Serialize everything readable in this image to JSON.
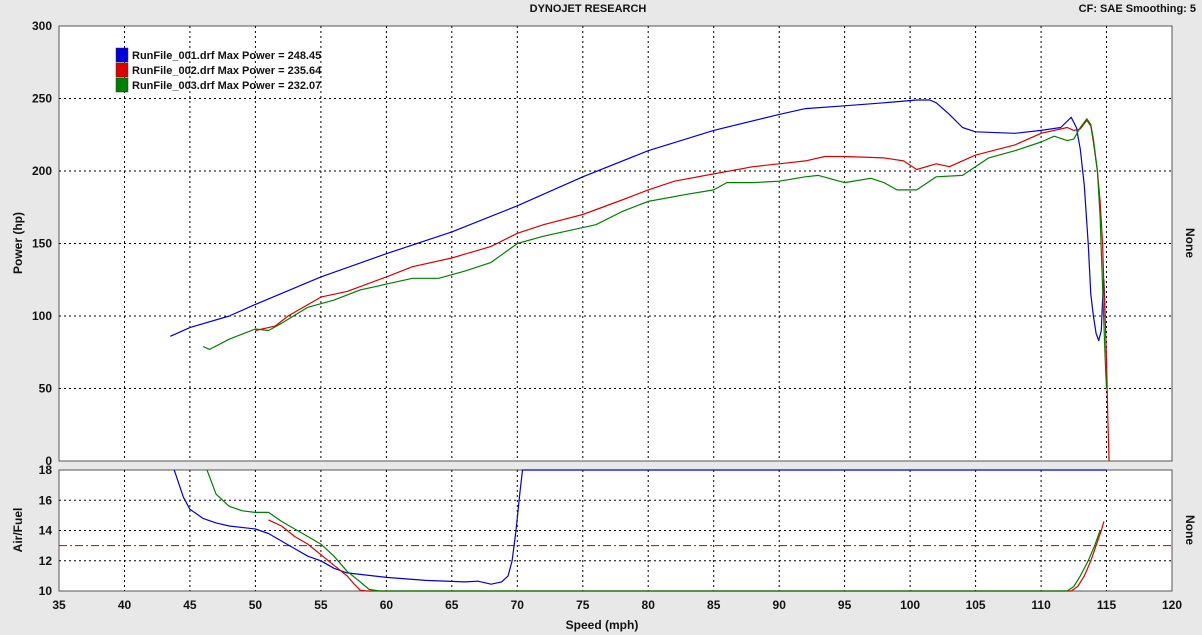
{
  "header": {
    "title": "DYNOJET RESEARCH",
    "settings": "CF: SAE  Smoothing: 5"
  },
  "chart_data": [
    {
      "type": "line",
      "ylabel": "Power (hp)",
      "right_label": "None",
      "xlim": [
        35,
        120
      ],
      "ylim": [
        0,
        300
      ],
      "yticks": [
        0,
        50,
        100,
        150,
        200,
        250,
        300
      ],
      "grid": true,
      "legend_position": "top-left",
      "series": [
        {
          "name": "RunFile_001.drf Max Power = 248.45",
          "color": "#0000dd",
          "points": [
            [
              43.5,
              86
            ],
            [
              45,
              92
            ],
            [
              48,
              100
            ],
            [
              50,
              108
            ],
            [
              55,
              127
            ],
            [
              60,
              143
            ],
            [
              65,
              158
            ],
            [
              70,
              176
            ],
            [
              75,
              196
            ],
            [
              80,
              214
            ],
            [
              85,
              228
            ],
            [
              90,
              239
            ],
            [
              92,
              243
            ],
            [
              95,
              245
            ],
            [
              98,
              247
            ],
            [
              100.5,
              249
            ],
            [
              101.5,
              249
            ],
            [
              102,
              247
            ],
            [
              103,
              239
            ],
            [
              104,
              230
            ],
            [
              105,
              227
            ],
            [
              108,
              226
            ],
            [
              110,
              228
            ],
            [
              111.5,
              230
            ],
            [
              112.3,
              237
            ],
            [
              112.7,
              230
            ],
            [
              113,
              215
            ],
            [
              113.3,
              190
            ],
            [
              113.6,
              150
            ],
            [
              113.8,
              115
            ],
            [
              114,
              100
            ],
            [
              114.2,
              88
            ],
            [
              114.4,
              83
            ],
            [
              114.6,
              90
            ],
            [
              114.7,
              112
            ],
            [
              114.8,
              125
            ],
            [
              114.9,
              100
            ]
          ]
        },
        {
          "name": "RunFile_002.drf Max Power = 235.64",
          "color": "#dd0000",
          "points": [
            [
              50,
              90
            ],
            [
              51.5,
              93
            ],
            [
              52.5,
              100
            ],
            [
              55,
              113
            ],
            [
              57,
              117
            ],
            [
              60,
              127
            ],
            [
              62,
              134
            ],
            [
              65,
              140
            ],
            [
              68,
              148
            ],
            [
              70,
              157
            ],
            [
              72,
              163
            ],
            [
              75,
              170
            ],
            [
              78,
              180
            ],
            [
              80,
              187
            ],
            [
              82,
              193
            ],
            [
              85,
              198
            ],
            [
              88,
              203
            ],
            [
              90,
              205
            ],
            [
              92,
              207
            ],
            [
              93.5,
              210
            ],
            [
              95,
              210
            ],
            [
              98,
              209
            ],
            [
              99.5,
              207
            ],
            [
              100.5,
              201
            ],
            [
              102,
              205
            ],
            [
              103,
              203
            ],
            [
              105,
              211
            ],
            [
              108,
              218
            ],
            [
              110,
              226
            ],
            [
              112,
              230
            ],
            [
              112.5,
              228
            ],
            [
              113,
              229
            ],
            [
              113.5,
              235
            ],
            [
              113.8,
              231
            ],
            [
              114,
              220
            ],
            [
              114.3,
              200
            ],
            [
              114.5,
              180
            ],
            [
              114.7,
              150
            ],
            [
              114.8,
              120
            ],
            [
              114.9,
              98
            ],
            [
              115,
              70
            ],
            [
              115.1,
              30
            ],
            [
              115.2,
              0
            ]
          ]
        },
        {
          "name": "RunFile_003.drf Max Power = 232.07",
          "color": "#008000",
          "points": [
            [
              46,
              79
            ],
            [
              46.5,
              77
            ],
            [
              48,
              84
            ],
            [
              50,
              91
            ],
            [
              51,
              90
            ],
            [
              52,
              95
            ],
            [
              54,
              106
            ],
            [
              56,
              111
            ],
            [
              58,
              118
            ],
            [
              60,
              122
            ],
            [
              62,
              126
            ],
            [
              64,
              126
            ],
            [
              66,
              131
            ],
            [
              68,
              137
            ],
            [
              70,
              150
            ],
            [
              72,
              155
            ],
            [
              74,
              159
            ],
            [
              76,
              163
            ],
            [
              78,
              172
            ],
            [
              80,
              179
            ],
            [
              83,
              184
            ],
            [
              85,
              187
            ],
            [
              86,
              192
            ],
            [
              88,
              192
            ],
            [
              90,
              193
            ],
            [
              92,
              196
            ],
            [
              93,
              197
            ],
            [
              95,
              192
            ],
            [
              97,
              195
            ],
            [
              98,
              192
            ],
            [
              99,
              187
            ],
            [
              100.5,
              187
            ],
            [
              102,
              196
            ],
            [
              104,
              197
            ],
            [
              106,
              209
            ],
            [
              108,
              214
            ],
            [
              110,
              220
            ],
            [
              111,
              224
            ],
            [
              112,
              221
            ],
            [
              112.5,
              222
            ],
            [
              113,
              230
            ],
            [
              113.5,
              236
            ],
            [
              113.8,
              232
            ],
            [
              114,
              222
            ],
            [
              114.3,
              200
            ],
            [
              114.5,
              170
            ],
            [
              114.7,
              120
            ],
            [
              114.9,
              70
            ],
            [
              115,
              50
            ]
          ]
        }
      ]
    },
    {
      "type": "line",
      "xlabel": "Speed (mph)",
      "ylabel": "Air/Fuel",
      "right_label": "None",
      "xlim": [
        35,
        120
      ],
      "xticks": [
        35,
        40,
        45,
        50,
        55,
        60,
        65,
        70,
        75,
        80,
        85,
        90,
        95,
        100,
        105,
        110,
        115,
        120
      ],
      "ylim": [
        10,
        18
      ],
      "yticks": [
        10,
        12,
        14,
        16,
        18
      ],
      "grid": true,
      "reference_line": {
        "value": 13,
        "color": "#cc0000"
      },
      "series": [
        {
          "color": "#0000dd",
          "points": [
            [
              43.8,
              18
            ],
            [
              44,
              17.5
            ],
            [
              44.5,
              16.2
            ],
            [
              45,
              15.4
            ],
            [
              46,
              14.8
            ],
            [
              47,
              14.5
            ],
            [
              48,
              14.3
            ],
            [
              50,
              14.1
            ],
            [
              51,
              13.8
            ],
            [
              52,
              13.3
            ],
            [
              53,
              12.8
            ],
            [
              54,
              12.3
            ],
            [
              55,
              12
            ],
            [
              56,
              11.5
            ],
            [
              57,
              11.2
            ],
            [
              60,
              10.9
            ],
            [
              63,
              10.7
            ],
            [
              66,
              10.6
            ],
            [
              67,
              10.65
            ],
            [
              68,
              10.45
            ],
            [
              68.8,
              10.6
            ],
            [
              69.3,
              11
            ],
            [
              69.6,
              12
            ],
            [
              69.9,
              14
            ],
            [
              70.2,
              16.5
            ],
            [
              70.4,
              18
            ],
            [
              115,
              18
            ]
          ]
        },
        {
          "color": "#dd0000",
          "points": [
            [
              51,
              14.7
            ],
            [
              52,
              14.3
            ],
            [
              53,
              13.6
            ],
            [
              54,
              13.1
            ],
            [
              55,
              12.4
            ],
            [
              56,
              11.7
            ],
            [
              57,
              11
            ],
            [
              57.5,
              10.5
            ],
            [
              58,
              10.05
            ],
            [
              58.5,
              10
            ],
            [
              112.3,
              10
            ],
            [
              112.8,
              10.3
            ],
            [
              113.3,
              11
            ],
            [
              113.8,
              12
            ],
            [
              114.2,
              13
            ],
            [
              114.6,
              14
            ],
            [
              114.8,
              14.6
            ]
          ]
        },
        {
          "color": "#008000",
          "points": [
            [
              46.3,
              18
            ],
            [
              47,
              16.4
            ],
            [
              48,
              15.6
            ],
            [
              49,
              15.3
            ],
            [
              50,
              15.2
            ],
            [
              51,
              15.2
            ],
            [
              52,
              14.6
            ],
            [
              53,
              14.1
            ],
            [
              54,
              13.6
            ],
            [
              55,
              13.1
            ],
            [
              56,
              12.3
            ],
            [
              57,
              11.3
            ],
            [
              58,
              10.6
            ],
            [
              58.7,
              10.1
            ],
            [
              59.5,
              10
            ],
            [
              112,
              10
            ],
            [
              112.5,
              10.3
            ],
            [
              113,
              11
            ],
            [
              113.6,
              12
            ],
            [
              114.1,
              13
            ],
            [
              114.5,
              14
            ]
          ]
        }
      ]
    }
  ]
}
